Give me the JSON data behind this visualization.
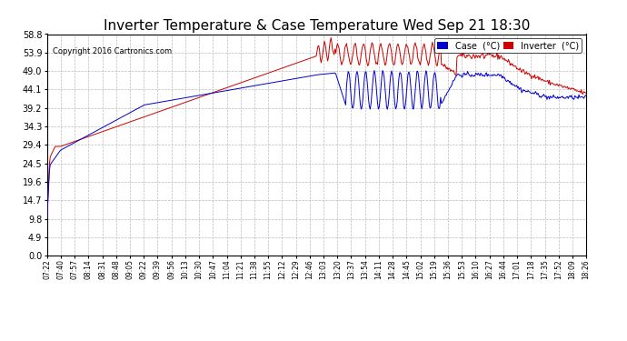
{
  "title": "Inverter Temperature & Case Temperature Wed Sep 21 18:30",
  "copyright": "Copyright 2016 Cartronics.com",
  "yticks": [
    0.0,
    4.9,
    9.8,
    14.7,
    19.6,
    24.5,
    29.4,
    34.3,
    39.2,
    44.1,
    49.0,
    53.9,
    58.8
  ],
  "ylim": [
    0.0,
    58.8
  ],
  "legend_case_color": "#0000cc",
  "legend_inverter_color": "#cc0000",
  "legend_case_label": "Case  (°C)",
  "legend_inverter_label": "Inverter  (°C)",
  "grid_color": "#bbbbbb",
  "background_color": "#ffffff",
  "plot_background": "#ffffff",
  "title_fontsize": 11,
  "case_color": "#0000cc",
  "inverter_color": "#cc0000",
  "x_labels": [
    "07:22",
    "07:40",
    "07:57",
    "08:14",
    "08:31",
    "08:48",
    "09:05",
    "09:22",
    "09:39",
    "09:56",
    "10:13",
    "10:30",
    "10:47",
    "11:04",
    "11:21",
    "11:38",
    "11:55",
    "12:12",
    "12:29",
    "12:46",
    "13:03",
    "13:20",
    "13:37",
    "13:54",
    "14:11",
    "14:28",
    "14:45",
    "15:02",
    "15:19",
    "15:36",
    "15:53",
    "16:10",
    "16:27",
    "16:44",
    "17:01",
    "17:18",
    "17:35",
    "17:52",
    "18:09",
    "18:26"
  ]
}
